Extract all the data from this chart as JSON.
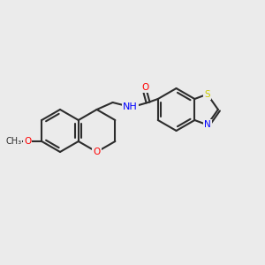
{
  "background_color": "#ebebeb",
  "bond_color": "#2d2d2d",
  "bond_width": 1.5,
  "atom_colors": {
    "O": "#ff0000",
    "N": "#0000ff",
    "S": "#cccc00",
    "C": "#2d2d2d"
  },
  "font_size": 7.5
}
